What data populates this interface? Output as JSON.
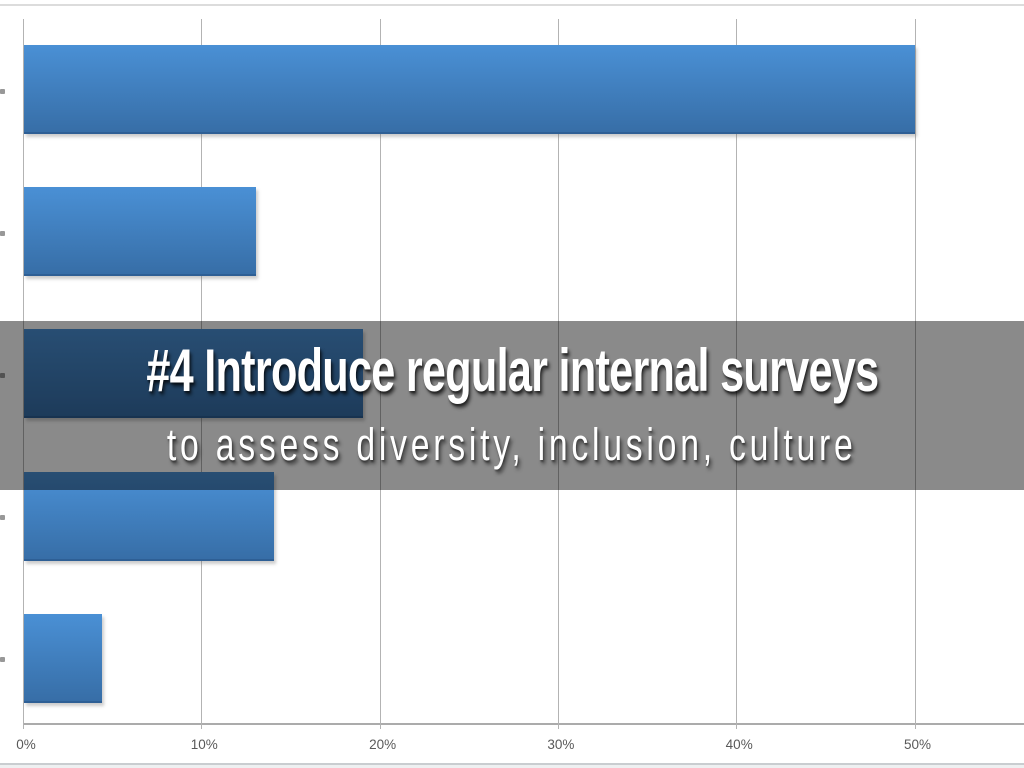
{
  "slide": {
    "overlay": {
      "title": "#4 Introduce regular internal surveys",
      "subtitle": "to assess diversity, inclusion, culture",
      "background_rgba": "rgba(0,0,0,0.46)",
      "text_color": "#ffffff"
    },
    "colors": {
      "background": "#ffffff",
      "bar_gradient_top": "#4a90d5",
      "bar_gradient_bottom": "#376ea7",
      "bar_edge": "#2e5f95",
      "gridline": "#b3b3b3",
      "axis_line": "#ababab",
      "axis_label": "#595959"
    }
  },
  "chart_data": {
    "type": "bar",
    "orientation": "horizontal",
    "categories": [
      "",
      "",
      "",
      "",
      ""
    ],
    "category_labels_cropped": true,
    "values": [
      50,
      13,
      19,
      14,
      4.4
    ],
    "x_ticks": [
      "0%",
      "10%",
      "20%",
      "30%",
      "40%",
      "50%"
    ],
    "x_tick_values": [
      0,
      10,
      20,
      30,
      40,
      50
    ],
    "xlim": [
      0,
      56
    ],
    "grid": true,
    "legend": false
  }
}
